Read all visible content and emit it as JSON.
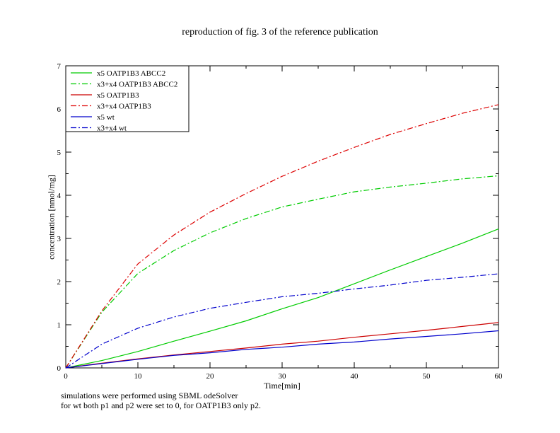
{
  "chart_data": {
    "type": "line",
    "title": "reproduction of fig. 3 of the reference publication",
    "xlabel": "Time[min]",
    "ylabel": "concentration [nmol/mg]",
    "xlim": [
      0,
      60
    ],
    "ylim": [
      0,
      7
    ],
    "xticks": [
      0,
      10,
      20,
      30,
      40,
      50,
      60
    ],
    "yticks": [
      0,
      1,
      2,
      3,
      4,
      5,
      6,
      7
    ],
    "grid": false,
    "legend_position": "top-left",
    "x": [
      0,
      5,
      10,
      15,
      20,
      25,
      30,
      35,
      40,
      45,
      50,
      55,
      60
    ],
    "series": [
      {
        "name": "x5 OATP1B3 ABCC2",
        "color": "#00cc00",
        "style": "solid",
        "values": [
          0,
          0.17,
          0.38,
          0.62,
          0.85,
          1.09,
          1.37,
          1.63,
          1.95,
          2.27,
          2.58,
          2.89,
          3.22
        ]
      },
      {
        "name": "x3+x4 OATP1B3 ABCC2",
        "color": "#00cc00",
        "style": "dashdot",
        "values": [
          0,
          1.29,
          2.19,
          2.72,
          3.13,
          3.46,
          3.73,
          3.91,
          4.08,
          4.19,
          4.28,
          4.38,
          4.45
        ]
      },
      {
        "name": "x5 OATP1B3",
        "color": "#cc0000",
        "style": "solid",
        "values": [
          0,
          0.11,
          0.21,
          0.3,
          0.38,
          0.46,
          0.55,
          0.62,
          0.71,
          0.79,
          0.87,
          0.96,
          1.05
        ]
      },
      {
        "name": "x3+x4 OATP1B3",
        "color": "#dd0000",
        "style": "dashdot",
        "values": [
          0,
          1.32,
          2.41,
          3.08,
          3.61,
          4.04,
          4.44,
          4.79,
          5.11,
          5.41,
          5.66,
          5.9,
          6.1
        ]
      },
      {
        "name": "x5 wt",
        "color": "#0000cc",
        "style": "solid",
        "values": [
          0,
          0.1,
          0.2,
          0.29,
          0.35,
          0.43,
          0.48,
          0.55,
          0.6,
          0.67,
          0.73,
          0.79,
          0.86
        ]
      },
      {
        "name": "x3+x4 wt",
        "color": "#0000cc",
        "style": "dashdot",
        "values": [
          0,
          0.55,
          0.92,
          1.18,
          1.38,
          1.52,
          1.65,
          1.73,
          1.83,
          1.92,
          2.03,
          2.1,
          2.18
        ]
      }
    ],
    "notes": [
      "simulations were performed using SBML odeSolver",
      "for wt both p1 and p2 were set to 0, for OATP1B3 only p2."
    ]
  }
}
